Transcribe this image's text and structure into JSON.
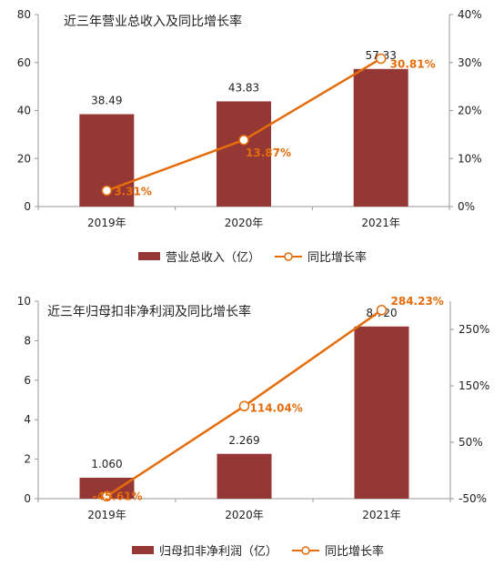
{
  "colors": {
    "bar": "#953735",
    "line": "#E46C0A",
    "axis": "#999999",
    "text": "#222222"
  },
  "chart_data": [
    {
      "type": "bar+line",
      "title": "近三年营业总收入及同比增长率",
      "categories": [
        "2019年",
        "2020年",
        "2021年"
      ],
      "series": [
        {
          "name": "营业总收入（亿）",
          "type": "bar",
          "axis": "left",
          "values": [
            38.49,
            43.83,
            57.33
          ],
          "labels": [
            "38.49",
            "43.83",
            "57.33"
          ]
        },
        {
          "name": "同比增长率",
          "type": "line",
          "axis": "right",
          "marker": "open-circle",
          "values": [
            3.31,
            13.87,
            30.81
          ],
          "labels": [
            "3.31%",
            "13.87%",
            "30.81%"
          ]
        }
      ],
      "y_left": {
        "ylim": [
          0,
          80
        ],
        "ticks": [
          "0",
          "20",
          "40",
          "60",
          "80"
        ]
      },
      "y_right": {
        "ylim": [
          0,
          40
        ],
        "ticks": [
          "0%",
          "10%",
          "20%",
          "30%",
          "40%"
        ]
      },
      "legend": "bottom",
      "grid": false
    },
    {
      "type": "bar+line",
      "title": "近三年归母扣非净利润及同比增长率",
      "categories": [
        "2019年",
        "2020年",
        "2021年"
      ],
      "series": [
        {
          "name": "归母扣非净利润（亿）",
          "type": "bar",
          "axis": "left",
          "values": [
            1.06,
            2.269,
            8.72
          ],
          "labels": [
            "1.060",
            "2.269",
            "8.720"
          ]
        },
        {
          "name": "同比增长率",
          "type": "line",
          "axis": "right",
          "marker": "open-circle",
          "values": [
            -45.61,
            114.04,
            284.23
          ],
          "labels": [
            "-45.61%",
            "114.04%",
            "284.23%"
          ]
        }
      ],
      "y_left": {
        "ylim": [
          0,
          10
        ],
        "ticks": [
          "0",
          "2",
          "4",
          "6",
          "8",
          "10"
        ]
      },
      "y_right": {
        "ylim": [
          -50,
          300
        ],
        "ticks": [
          "-50%",
          "50%",
          "150%",
          "250%"
        ]
      },
      "legend": "bottom",
      "grid": false
    }
  ]
}
